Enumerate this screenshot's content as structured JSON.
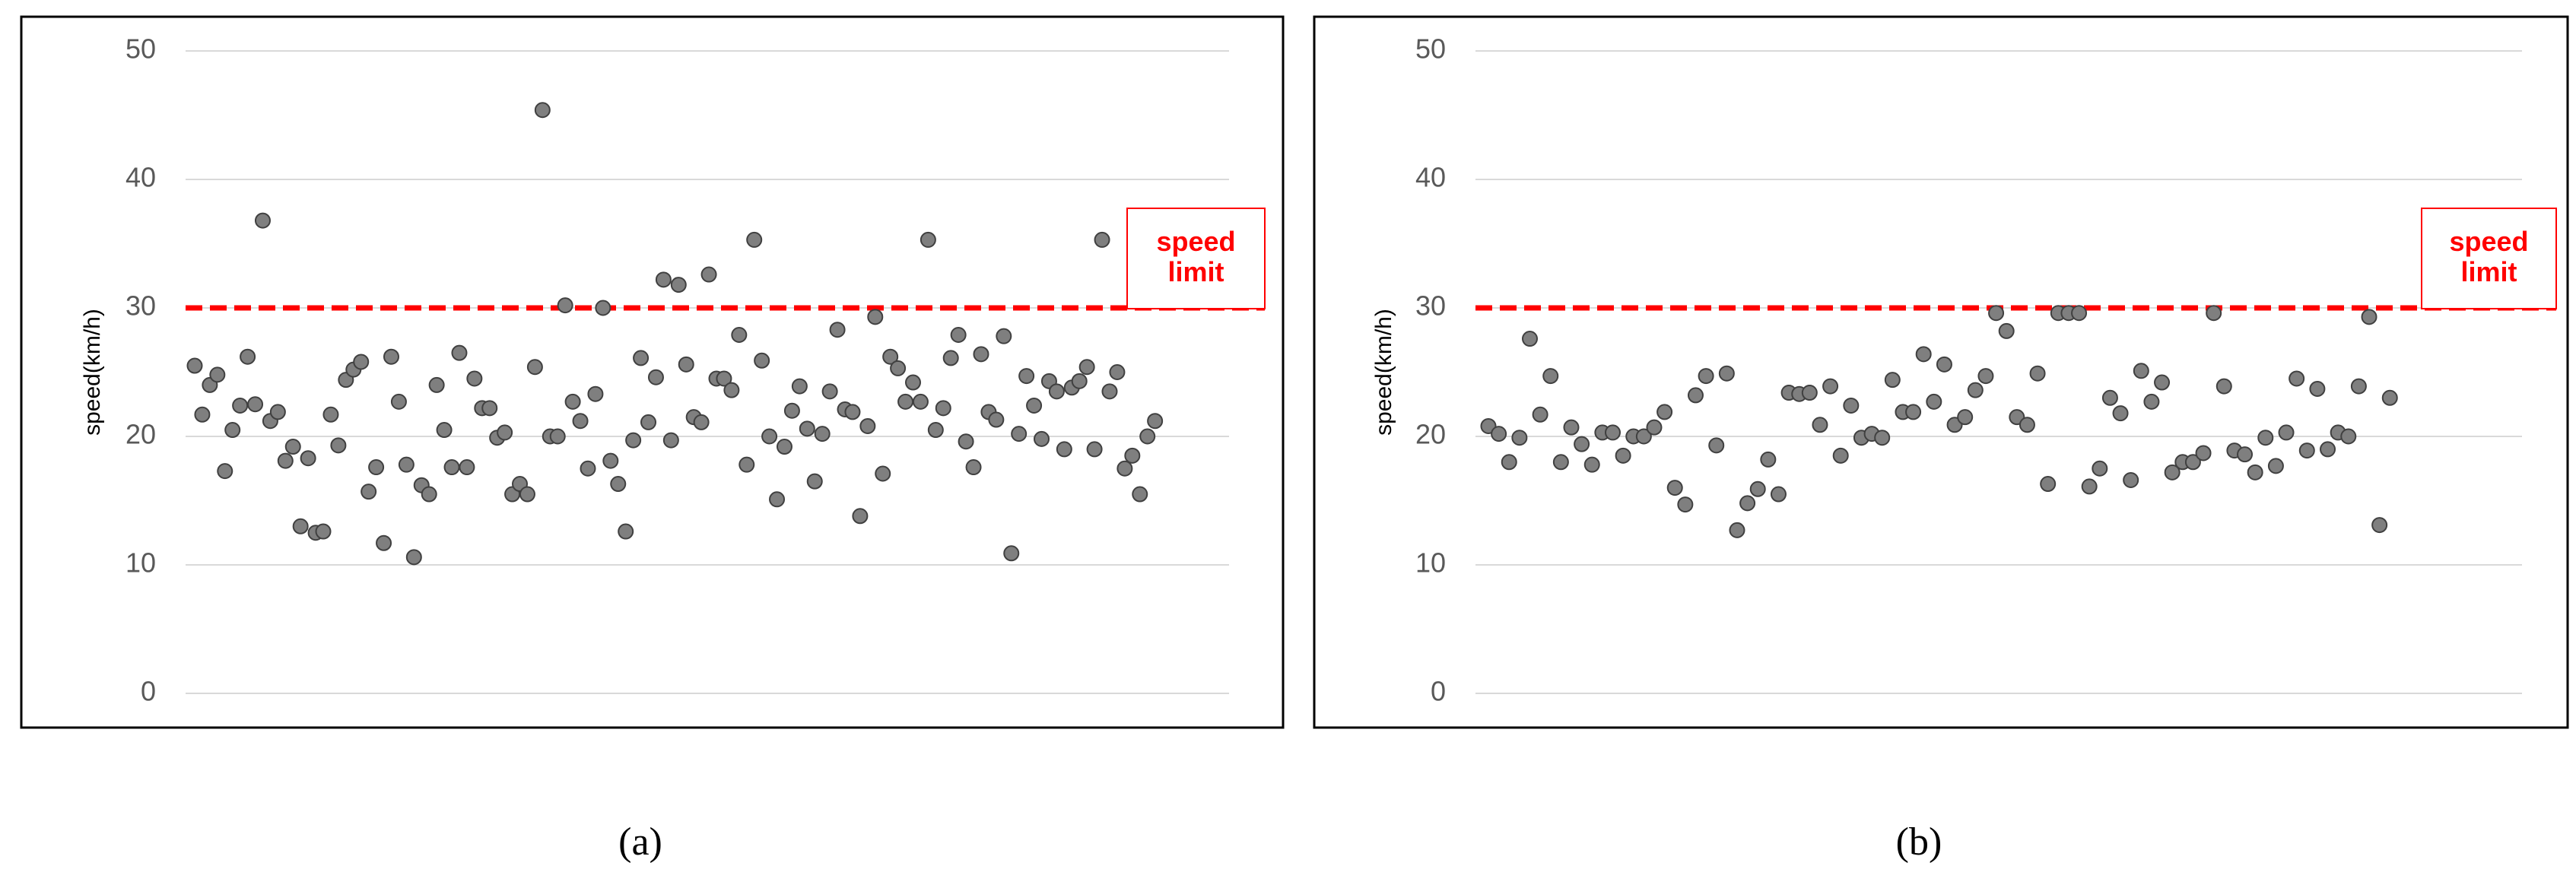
{
  "chart_data": [
    {
      "type": "scatter",
      "caption": "(a)",
      "y_label": "speed(km/h)",
      "color": "#7f7f7f",
      "ylim": [
        0,
        50
      ],
      "yticks": [
        0,
        10,
        20,
        30,
        40,
        50
      ],
      "grid": true,
      "hline": {
        "value": 30,
        "color": "#ff0000",
        "label": "speed limit"
      },
      "values": [
        25.5,
        21.7,
        24,
        24.8,
        17.3,
        20.5,
        22.4,
        26.2,
        22.5,
        36.8,
        21.2,
        21.9,
        18.1,
        19.2,
        13,
        18.3,
        12.5,
        12.6,
        21.7,
        19.3,
        24.4,
        25.2,
        25.8,
        15.7,
        17.6,
        11.7,
        26.2,
        22.7,
        17.8,
        10.6,
        16.2,
        15.5,
        24,
        20.5,
        17.6,
        26.5,
        17.6,
        24.5,
        22.2,
        22.2,
        19.9,
        20.3,
        15.5,
        16.3,
        15.5,
        25.4,
        45.4,
        20,
        20,
        30.2,
        22.7,
        21.2,
        17.5,
        23.3,
        30,
        18.1,
        16.3,
        12.6,
        19.7,
        26.1,
        21.1,
        24.6,
        32.2,
        19.7,
        31.8,
        25.6,
        21.5,
        21.1,
        32.6,
        24.5,
        24.5,
        23.6,
        27.9,
        17.8,
        35.3,
        25.9,
        20,
        15.1,
        19.2,
        22,
        23.9,
        20.6,
        16.5,
        20.2,
        23.5,
        28.3,
        22.1,
        21.9,
        13.8,
        20.8,
        29.3,
        17.1,
        26.2,
        25.3,
        22.7,
        24.2,
        22.7,
        35.3,
        20.5,
        22.2,
        26.1,
        27.9,
        19.6,
        17.6,
        26.4,
        21.9,
        21.3,
        27.8,
        10.9,
        20.2,
        24.7,
        22.4,
        19.8,
        24.3,
        23.5,
        19,
        23.8,
        24.3,
        25.4,
        19,
        35.3,
        23.5,
        25,
        17.5,
        18.5,
        15.5,
        20,
        21.2
      ]
    },
    {
      "type": "scatter",
      "caption": "(b)",
      "y_label": "speed(km/h)",
      "color": "#7f7f7f",
      "ylim": [
        0,
        50
      ],
      "yticks": [
        0,
        10,
        20,
        30,
        40,
        50
      ],
      "grid": true,
      "hline": {
        "value": 30,
        "color": "#ff0000",
        "label": "speed limit"
      },
      "values": [
        20.8,
        20.2,
        18,
        19.9,
        27.6,
        21.7,
        24.7,
        18,
        20.7,
        19.4,
        17.8,
        20.3,
        20.3,
        18.5,
        20,
        20,
        20.7,
        21.9,
        16,
        14.7,
        23.2,
        24.7,
        19.3,
        24.9,
        12.7,
        14.8,
        15.9,
        18.2,
        15.5,
        23.4,
        23.3,
        23.4,
        20.9,
        23.9,
        18.5,
        22.4,
        19.9,
        20.2,
        19.9,
        24.4,
        21.9,
        21.9,
        26.4,
        22.7,
        25.6,
        20.9,
        21.5,
        23.6,
        24.7,
        29.6,
        28.2,
        21.5,
        20.9,
        24.9,
        16.3,
        29.6,
        29.6,
        29.6,
        16.1,
        17.5,
        23,
        21.8,
        16.6,
        25.1,
        22.7,
        24.2,
        17.2,
        18,
        18,
        18.7,
        29.6,
        23.9,
        18.9,
        18.6,
        17.2,
        19.9,
        17.7,
        20.3,
        24.5,
        18.9,
        23.7,
        19,
        20.3,
        20,
        23.9,
        29.3,
        13.1,
        23
      ]
    }
  ]
}
